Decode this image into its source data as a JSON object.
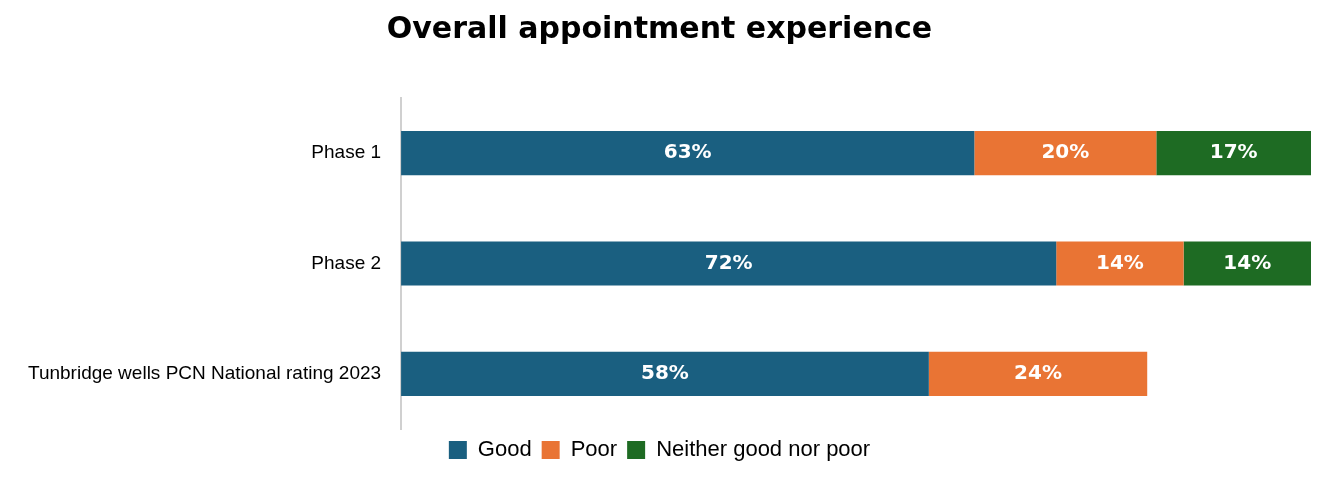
{
  "chart_data": {
    "type": "bar",
    "orientation": "horizontal",
    "stacked": true,
    "title": "Overall appointment experience",
    "categories": [
      "Phase 1",
      "Phase 2",
      "Tunbridge wells PCN National rating 2023"
    ],
    "series": [
      {
        "name": "Good",
        "color": "#1a5f80",
        "values": [
          63,
          72,
          58
        ],
        "value_labels": [
          "63%",
          "72%",
          "58%"
        ]
      },
      {
        "name": "Poor",
        "color": "#e97434",
        "values": [
          20,
          14,
          24
        ],
        "value_labels": [
          "20%",
          "14%",
          "24%"
        ]
      },
      {
        "name": "Neither good nor poor",
        "color": "#1e6b23",
        "values": [
          17,
          14,
          null
        ],
        "value_labels": [
          "17%",
          "14%",
          null
        ]
      }
    ],
    "legend": "bottom",
    "grid": false
  }
}
